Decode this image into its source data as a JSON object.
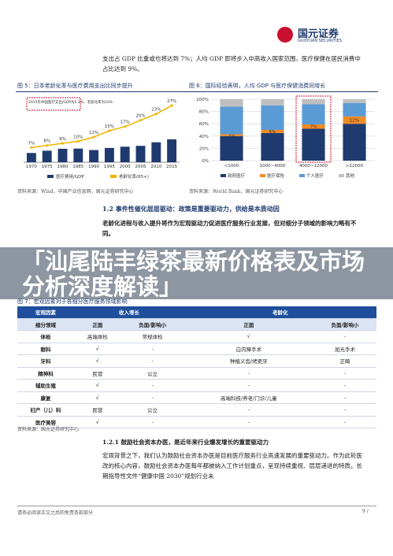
{
  "header": {
    "logo": "国元证券",
    "logo_en": "GUOYUAN SECURITIES"
  },
  "intro": "支出占 GDP 比重或也将达到 7%；人均 GDP 即将步入中高收入国家范围，医疗保健在居民消费中占比达到 9%。",
  "figure5": {
    "type": "bar",
    "title": "图 5：日本老龄化率与医疗费用支出比同步提升",
    "annotation": "2015年中国医疗支出/GDP为5.3%，老龄化率为10%",
    "categories": [
      "1970",
      "1975",
      "1980",
      "1985",
      "1990",
      "1995",
      "2000",
      "2005",
      "2010",
      "2015"
    ],
    "series": [
      {
        "name": "医疗费用/GDP",
        "color": "#1f3a6e",
        "values": [
          4.4,
          5.5,
          6.4,
          6.5,
          5.8,
          6.8,
          7.4,
          7.8,
          9.5,
          10.9
        ]
      },
      {
        "name": "老龄化率(65+)",
        "color": "#f0b400",
        "values": [
          7,
          8,
          9,
          10,
          12,
          15,
          17,
          20,
          23,
          27
        ],
        "value_labels": [
          "7%",
          "8%",
          "9%",
          "10%",
          "12%",
          "15%",
          "17%",
          "20%",
          "23%",
          "27%"
        ]
      }
    ],
    "ylim": [
      0,
      30
    ],
    "source": "资料来源：Wind，中国产业信息网，国元证券研究中心"
  },
  "figure6": {
    "type": "stacked-bar",
    "title": "图 6：国际经验表明，人均 GDP 与医疗保健消费同增长",
    "categories": [
      "<1000",
      "1000~4000",
      "4000~12000",
      ">12000"
    ],
    "series": [
      {
        "name": "政府医疗",
        "color": "#1f3a6e",
        "values": [
          40,
          45,
          52,
          60
        ]
      },
      {
        "name": "医疗保险",
        "color": "#f08a24",
        "values": [
          3,
          5,
          7,
          12
        ],
        "value_labels": [
          "3%",
          "5%",
          "7%",
          "12%"
        ]
      },
      {
        "name": "个人医疗",
        "color": "#5b9bd5",
        "values": [
          45,
          40,
          33,
          22
        ]
      },
      {
        "name": "其他",
        "color": "#bfbfbf",
        "values": [
          12,
          10,
          8,
          6
        ]
      }
    ],
    "ylim": [
      0,
      100
    ],
    "yticks": [
      {
        "value": 0,
        "label": "0%"
      },
      {
        "value": 20,
        "label": "20%"
      },
      {
        "value": 40,
        "label": "40%"
      },
      {
        "value": 60,
        "label": "60%"
      },
      {
        "value": 80,
        "label": "80%"
      },
      {
        "value": 100,
        "label": "100%"
      }
    ],
    "source": "资料来源：World Bank，国元证券研究中心"
  },
  "section": {
    "heading": "1.2 事件性催化层层驱动：政策是重要驱动力，供给是本质动因",
    "text": "老龄化进程与收入提升将作为宏观驱动力促进医疗服务行业发展，但对细分子领域的影响力略有不同。"
  },
  "overlay": "「汕尾陆丰绿茶最新价格表及市场分析深度解读」",
  "table": {
    "title": "图 7：宏观因素对于各细分医疗服务领域影响",
    "header": [
      "宏观因素",
      "收入增长",
      "老龄化"
    ],
    "subheader": [
      "细分领域",
      "正面",
      "负面/影响小",
      "正面",
      "负面/影响小"
    ],
    "rows": [
      [
        "体检",
        "高端体检",
        "常规体检",
        "√",
        "-"
      ],
      [
        "眼科",
        "√",
        "-",
        "白内障手术",
        "屈光手术"
      ],
      [
        "牙科",
        "√",
        "-",
        "种植义齿/烤瓷牙",
        "正畸"
      ],
      [
        "精神科",
        "民营",
        "公立",
        "-",
        "-"
      ],
      [
        "辅助生殖",
        "√",
        "-",
        "-",
        "-"
      ],
      [
        "康复",
        "√",
        "-",
        "高端科技/养老/门诊/儿童",
        "-"
      ],
      [
        "妇产（儿）科",
        "民营",
        "公立",
        "-",
        "-"
      ],
      [
        "医疗美容",
        "√",
        "-",
        "-",
        "-"
      ]
    ],
    "source": "资料来源：国元证券研究中心"
  },
  "subsection": {
    "heading": "1.2.1 鼓励社会资本办医，是近年来行业爆发增长的重要驱动力",
    "text": "宏观背景之下，我们认为鼓励社会资本办医是目前医疗服务行业高速发展的重要驱动力。作为此轮医改的核心内容，鼓励社会资本办医每年都被纳入工作计划重点，呈现持续重视、层层递进的特质。长期指导性文件“健康中国 2030”规划行业未"
  },
  "footer": {
    "disclaimer": "请务必阅读正文之后的免责条款部分",
    "page": "9 /"
  }
}
